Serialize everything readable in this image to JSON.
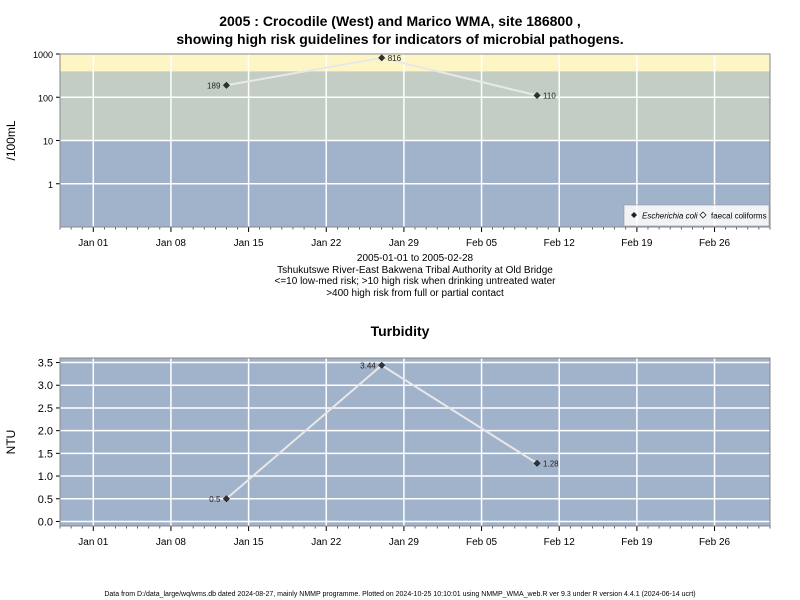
{
  "chart_data": [
    {
      "type": "line",
      "title_line1": "2005 : Crocodile (West) and Marico WMA, site 186800 ,",
      "title_line2": "showing high risk guidelines for indicators of microbial pathogens.",
      "ylabel": "/100mL",
      "yscale": "log",
      "ylim": [
        0.1,
        1000
      ],
      "yticks": [
        "1",
        "10",
        "100",
        "1000"
      ],
      "xticks": [
        "Jan 01",
        "Jan 08",
        "Jan 15",
        "Jan 22",
        "Jan 29",
        "Feb 05",
        "Feb 12",
        "Feb 19",
        "Feb 26"
      ],
      "xlim": [
        "2004-12-29",
        "2005-03-03"
      ],
      "bands": [
        {
          "from": 0.1,
          "to": 10,
          "color": "#a1b2cb"
        },
        {
          "from": 10,
          "to": 400,
          "color": "#c4cdc4"
        },
        {
          "from": 400,
          "to": 1000,
          "color": "#fdf6c4"
        }
      ],
      "series": [
        {
          "name": "Escherichia coli",
          "marker": "filled-diamond",
          "x": [
            "2005-01-13",
            "2005-01-27",
            "2005-02-10"
          ],
          "y": [
            189,
            816,
            110
          ],
          "labels": [
            "189",
            "816",
            "110"
          ]
        },
        {
          "name": "faecal coliforms",
          "marker": "open-diamond",
          "x": [],
          "y": [],
          "labels": []
        }
      ],
      "subtitle_lines": [
        "2005-01-01 to 2005-02-28",
        "Tshukutswe River-East Bakwena Tribal Authority at Old Bridge",
        "<=10 low-med risk; >10 high risk when drinking untreated water",
        ">400 high risk from full or partial contact"
      ],
      "legend_position": "bottom-right",
      "grid": true
    },
    {
      "type": "line",
      "title": "Turbidity",
      "ylabel": "NTU",
      "ylim": [
        -0.1,
        3.6
      ],
      "yticks": [
        "0.0",
        "0.5",
        "1.0",
        "1.5",
        "2.0",
        "2.5",
        "3.0",
        "3.5"
      ],
      "xticks": [
        "Jan 01",
        "Jan 08",
        "Jan 15",
        "Jan 22",
        "Jan 29",
        "Feb 05",
        "Feb 12",
        "Feb 19",
        "Feb 26"
      ],
      "xlim": [
        "2004-12-29",
        "2005-03-03"
      ],
      "background": "#a1b2cb",
      "series": [
        {
          "marker": "filled-diamond",
          "x": [
            "2005-01-13",
            "2005-01-27",
            "2005-02-10"
          ],
          "y": [
            0.5,
            3.44,
            1.28
          ],
          "labels": [
            "0.5",
            "3.44",
            "1.28"
          ]
        }
      ],
      "grid": true
    }
  ],
  "footer": "Data from D:/data_large/wq/wms.db dated 2024-08-27, mainly NMMP programme. Plotted on 2024-10-25 10:10:01 using NMMP_WMA_web.R ver 9.3 under R version 4.4.1 (2024-06-14 ucrt)"
}
